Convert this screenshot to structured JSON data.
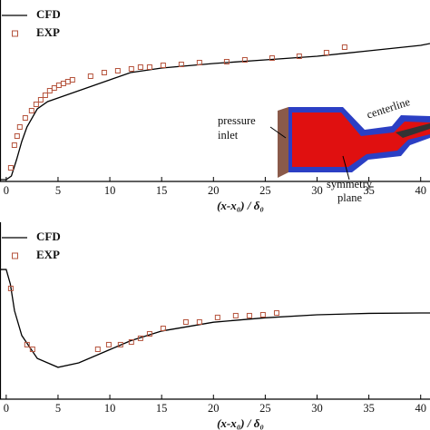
{
  "chart_data": [
    {
      "type": "line",
      "x_label": "(x-x₀) / δ₀",
      "xlim": [
        -0.6,
        40.9
      ],
      "xticks": [
        0,
        5,
        10,
        15,
        20,
        25,
        30,
        35,
        40
      ],
      "ylim": [
        0,
        1
      ],
      "legend": "upper left",
      "annotations": [
        [
          "pressure",
          "inlet"
        ],
        [
          "symmetry",
          "plane"
        ],
        [
          "centerline"
        ]
      ],
      "series": [
        {
          "name": "CFD",
          "kind": "line",
          "color": "#000000",
          "x": [
            -0.6,
            0,
            0.5,
            1,
            1.5,
            2,
            3,
            4,
            5,
            6,
            7,
            8,
            10,
            12,
            15,
            20,
            25,
            30,
            35,
            40,
            40.9
          ],
          "values": [
            0.01,
            0.01,
            0.03,
            0.12,
            0.22,
            0.3,
            0.4,
            0.44,
            0.46,
            0.48,
            0.5,
            0.52,
            0.56,
            0.6,
            0.625,
            0.65,
            0.67,
            0.69,
            0.72,
            0.75,
            0.76
          ]
        },
        {
          "name": "EXP",
          "kind": "markers",
          "color": "#b5533c",
          "x": [
            0.44,
            0.79,
            1.05,
            1.31,
            1.84,
            2.45,
            2.89,
            3.33,
            3.77,
            4.2,
            4.64,
            5.08,
            5.52,
            5.95,
            6.39,
            8.14,
            9.46,
            10.77,
            12.08,
            12.96,
            13.84,
            15.15,
            16.9,
            18.65,
            21.28,
            23.03,
            25.66,
            28.28,
            30.91,
            32.66
          ],
          "values": [
            0.075,
            0.2,
            0.25,
            0.3,
            0.35,
            0.39,
            0.425,
            0.45,
            0.475,
            0.5,
            0.515,
            0.53,
            0.54,
            0.55,
            0.56,
            0.58,
            0.6,
            0.61,
            0.62,
            0.63,
            0.63,
            0.64,
            0.645,
            0.655,
            0.66,
            0.67,
            0.68,
            0.69,
            0.71,
            0.74
          ]
        }
      ]
    },
    {
      "type": "line",
      "x_label": "(x-x₀) / δ₀",
      "xlim": [
        -0.6,
        40.9
      ],
      "xticks": [
        0,
        5,
        10,
        15,
        20,
        25,
        30,
        35,
        40
      ],
      "ylim": [
        0,
        1
      ],
      "legend": "upper left",
      "series": [
        {
          "name": "CFD",
          "kind": "line",
          "color": "#000000",
          "x": [
            -0.6,
            0,
            0.4,
            0.8,
            1.5,
            3,
            5,
            7,
            10,
            12,
            15,
            20,
            25,
            30,
            35,
            40,
            40.9
          ],
          "values": [
            0.733,
            0.733,
            0.65,
            0.5,
            0.36,
            0.23,
            0.18,
            0.205,
            0.28,
            0.33,
            0.385,
            0.435,
            0.46,
            0.477,
            0.485,
            0.487,
            0.487
          ]
        },
        {
          "name": "EXP",
          "kind": "markers",
          "color": "#b5533c",
          "x": [
            0.44,
            2.01,
            2.54,
            8.84,
            9.9,
            11.03,
            12.08,
            12.96,
            13.84,
            15.15,
            17.34,
            18.65,
            20.4,
            22.15,
            23.47,
            24.78,
            26.1
          ],
          "values": [
            0.626,
            0.308,
            0.282,
            0.282,
            0.308,
            0.308,
            0.323,
            0.344,
            0.369,
            0.4,
            0.436,
            0.436,
            0.462,
            0.472,
            0.472,
            0.477,
            0.487
          ]
        }
      ]
    }
  ]
}
